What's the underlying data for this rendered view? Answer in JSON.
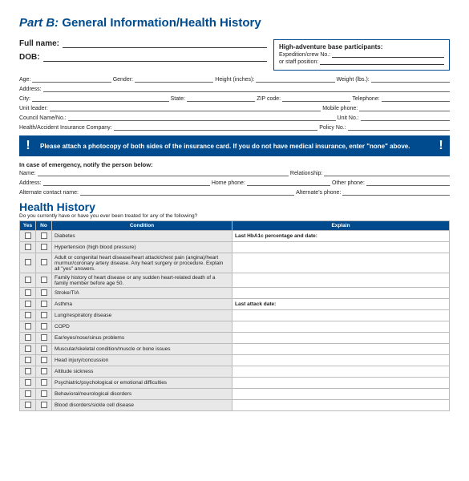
{
  "title_part": "Part B:",
  "title_rest": " General Information/Health History",
  "full_name": "Full name:",
  "dob": "DOB:",
  "box": {
    "title": "High-adventure base participants:",
    "l1": "Expedition/crew No.:",
    "l2": "or staff position:"
  },
  "r1": {
    "age": "Age:",
    "gender": "Gender:",
    "height": "Height (inches):",
    "weight": "Weight (lbs.):"
  },
  "r2": {
    "address": "Address:"
  },
  "r3": {
    "city": "City:",
    "state": "State:",
    "zip": "ZIP code:",
    "tel": "Telephone:"
  },
  "r4": {
    "leader": "Unit leader:",
    "mobile": "Mobile phone:"
  },
  "r5": {
    "council": "Council Name/No.:",
    "unit": "Unit No.:"
  },
  "r6": {
    "ins": "Health/Accident Insurance Company:",
    "policy": "Policy No.:"
  },
  "alert": "Please attach a photocopy of both sides of the insurance card. If you do not have medical insurance, enter \"none\" above.",
  "emerg": "In case of emergency, notify the person below:",
  "e1": {
    "name": "Name:",
    "rel": "Relationship:"
  },
  "e2": {
    "addr": "Address:",
    "hp": "Home phone:",
    "op": "Other phone:"
  },
  "e3": {
    "alt": "Alternate contact name:",
    "ap": "Alternate's phone:"
  },
  "hh": "Health History",
  "hh_sub": "Do you currently have or have you ever been treated for any of the following?",
  "th": {
    "yes": "Yes",
    "no": "No",
    "cond": "Condition",
    "exp": "Explain"
  },
  "rows": [
    {
      "c": "Diabetes",
      "e": "Last HbA1c percentage and date:",
      "eb": true
    },
    {
      "c": "Hypertension (high blood pressure)",
      "e": ""
    },
    {
      "c": "Adult or congenital heart disease/heart attack/chest pain (angina)/heart murmur/coronary artery disease. Any heart surgery or procedure. Explain all \"yes\" answers.",
      "e": ""
    },
    {
      "c": "Family history of heart disease or any sudden heart-related death of a family member before age 50.",
      "e": ""
    },
    {
      "c": "Stroke/TIA",
      "e": ""
    },
    {
      "c": "Asthma",
      "e": "Last attack date:",
      "eb": true
    },
    {
      "c": "Lung/respiratory disease",
      "e": ""
    },
    {
      "c": "COPD",
      "e": ""
    },
    {
      "c": "Ear/eyes/nose/sinus problems",
      "e": ""
    },
    {
      "c": "Muscular/skeletal condition/muscle or bone issues",
      "e": ""
    },
    {
      "c": "Head injury/concussion",
      "e": ""
    },
    {
      "c": "Altitude sickness",
      "e": ""
    },
    {
      "c": "Psychiatric/psychological or emotional difficulties",
      "e": ""
    },
    {
      "c": "Behavioral/neurological disorders",
      "e": ""
    },
    {
      "c": "Blood disorders/sickle cell disease",
      "e": ""
    }
  ]
}
